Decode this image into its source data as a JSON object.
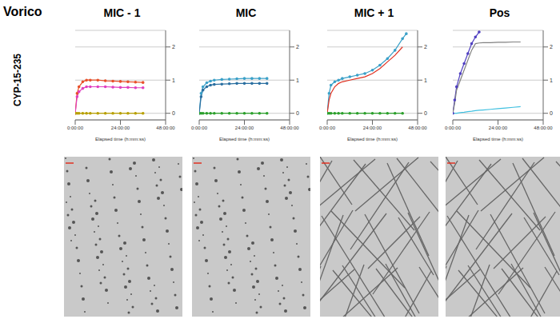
{
  "title": "Vorico",
  "row_label": "CYP-15-235",
  "chart_data": [
    {
      "type": "line",
      "title": "MIC - 1",
      "x_label": "Elapsed time (h:mm:ss)",
      "xlim": [
        0,
        48
      ],
      "xticks": [
        {
          "value": 0,
          "label": "0:00:00"
        },
        {
          "value": 24,
          "label": "24:00:00"
        },
        {
          "value": 48,
          "label": "48:00:00"
        }
      ],
      "ylim": [
        -0.2,
        2.5
      ],
      "yticks": [
        0,
        1,
        2
      ],
      "grid": true,
      "x": [
        0,
        1,
        2,
        4,
        6,
        8,
        12,
        16,
        20,
        24,
        28,
        32,
        36
      ],
      "series": [
        {
          "color": "#e8502a",
          "marker": "dot",
          "values": [
            0,
            0.6,
            0.8,
            0.95,
            1.0,
            1.0,
            1.0,
            0.98,
            0.97,
            0.96,
            0.95,
            0.94,
            0.93
          ]
        },
        {
          "color": "#e040c0",
          "marker": "dot",
          "values": [
            0,
            0.5,
            0.65,
            0.75,
            0.8,
            0.8,
            0.8,
            0.8,
            0.79,
            0.78,
            0.78,
            0.77,
            0.77
          ]
        },
        {
          "color": "#b8a000",
          "marker": "dot",
          "values": [
            0,
            0,
            0,
            0,
            0,
            0,
            0,
            0,
            0,
            0,
            0,
            0,
            0
          ]
        }
      ]
    },
    {
      "type": "line",
      "title": "MIC",
      "x_label": "Elapsed time (h:mm:ss)",
      "xlim": [
        0,
        48
      ],
      "xticks": [
        {
          "value": 0,
          "label": "0:00:00"
        },
        {
          "value": 24,
          "label": "24:00:00"
        },
        {
          "value": 48,
          "label": "48:00:00"
        }
      ],
      "ylim": [
        -0.2,
        2.5
      ],
      "yticks": [
        0,
        1,
        2
      ],
      "grid": true,
      "x": [
        0,
        1,
        2,
        4,
        6,
        8,
        12,
        16,
        20,
        24,
        28,
        32,
        36
      ],
      "series": [
        {
          "color": "#3aa0c8",
          "marker": "dot",
          "values": [
            0,
            0.6,
            0.8,
            0.92,
            0.97,
            1.0,
            1.02,
            1.03,
            1.04,
            1.05,
            1.05,
            1.05,
            1.05
          ]
        },
        {
          "color": "#2a6fa0",
          "marker": "dot",
          "values": [
            0,
            0.5,
            0.7,
            0.8,
            0.85,
            0.87,
            0.88,
            0.89,
            0.9,
            0.9,
            0.9,
            0.9,
            0.9
          ]
        },
        {
          "color": "#2ca02c",
          "marker": "dot",
          "values": [
            0,
            0,
            0,
            0,
            0,
            0,
            0,
            0,
            0,
            0,
            0,
            0,
            0
          ]
        }
      ]
    },
    {
      "type": "line",
      "title": "MIC + 1",
      "x_label": "Elapsed time (h:mm:ss)",
      "xlim": [
        0,
        48
      ],
      "xticks": [
        {
          "value": 0,
          "label": "0:00:00"
        },
        {
          "value": 24,
          "label": "24:00:00"
        },
        {
          "value": 48,
          "label": "48:00:00"
        }
      ],
      "ylim": [
        -0.2,
        2.5
      ],
      "yticks": [
        0,
        1,
        2
      ],
      "grid": true,
      "x": [
        0,
        1,
        2,
        4,
        6,
        8,
        12,
        16,
        20,
        24,
        28,
        32,
        36,
        40,
        42
      ],
      "series": [
        {
          "color": "#3aa0c8",
          "marker": "dot",
          "values": [
            0,
            0.6,
            0.85,
            0.95,
            1.0,
            1.05,
            1.1,
            1.15,
            1.2,
            1.3,
            1.45,
            1.65,
            1.9,
            2.25,
            2.4
          ]
        },
        {
          "color": "#e03020",
          "marker": "none",
          "values": [
            0,
            0.4,
            0.6,
            0.8,
            0.9,
            0.95,
            1.0,
            1.05,
            1.1,
            1.2,
            1.35,
            1.55,
            1.75,
            2.0,
            null
          ]
        },
        {
          "color": "#2ca02c",
          "marker": "dot",
          "values": [
            0,
            0,
            0,
            0,
            0,
            0,
            0,
            0,
            0,
            0,
            0,
            0,
            0,
            0,
            null
          ]
        }
      ]
    },
    {
      "type": "line",
      "title": "Pos",
      "x_label": "Elapsed time (h:mm:ss)",
      "xlim": [
        0,
        48
      ],
      "xticks": [
        {
          "value": 0,
          "label": "0:00:00"
        },
        {
          "value": 24,
          "label": "24:00:00"
        },
        {
          "value": 48,
          "label": "48:00:00"
        }
      ],
      "ylim": [
        -0.2,
        2.5
      ],
      "yticks": [
        0,
        1,
        2
      ],
      "grid": true,
      "x": [
        0,
        1,
        2,
        4,
        6,
        8,
        10,
        12,
        14,
        16,
        20,
        24,
        28,
        32,
        36
      ],
      "series": [
        {
          "color": "#5040c0",
          "marker": "dot",
          "values": [
            0,
            0.4,
            0.8,
            1.2,
            1.5,
            1.8,
            2.1,
            2.3,
            2.45,
            null,
            null,
            null,
            null,
            null,
            null
          ]
        },
        {
          "color": "#808080",
          "marker": "none",
          "values": [
            0,
            0.3,
            0.7,
            1.0,
            1.3,
            1.6,
            1.9,
            2.1,
            2.12,
            2.13,
            2.13,
            2.14,
            2.14,
            2.15,
            2.15
          ]
        },
        {
          "color": "#40c0e0",
          "marker": "none",
          "values": [
            0,
            0,
            0,
            0.02,
            0.03,
            0.05,
            0.06,
            0.08,
            0.09,
            0.1,
            0.12,
            0.14,
            0.16,
            0.18,
            0.2
          ]
        }
      ]
    }
  ]
}
